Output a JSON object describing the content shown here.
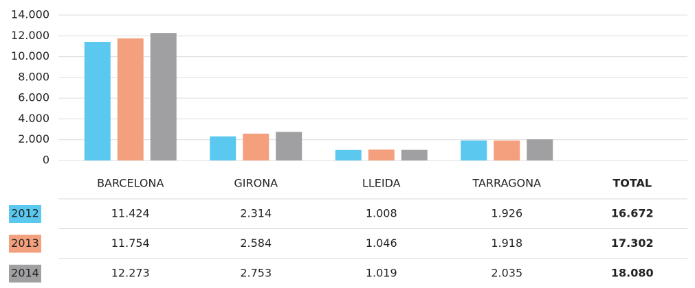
{
  "chart_data": {
    "type": "bar",
    "categories": [
      "BARCELONA",
      "GIRONA",
      "LLEIDA",
      "TARRAGONA"
    ],
    "total_header": "TOTAL",
    "series": [
      {
        "name": "2012",
        "color": "#5bc8f0",
        "values": [
          11424,
          2314,
          1008,
          1926
        ],
        "value_labels": [
          "11.424",
          "2.314",
          "1.008",
          "1.926"
        ],
        "total": {
          "value": 16672,
          "label": "16.672"
        }
      },
      {
        "name": "2013",
        "color": "#f4a07e",
        "values": [
          11754,
          2584,
          1046,
          1918
        ],
        "value_labels": [
          "11.754",
          "2.584",
          "1.046",
          "1.918"
        ],
        "total": {
          "value": 17302,
          "label": "17.302"
        }
      },
      {
        "name": "2014",
        "color": "#a0a0a2",
        "values": [
          12273,
          2753,
          1019,
          2035
        ],
        "value_labels": [
          "12.273",
          "2.753",
          "1.019",
          "2.035"
        ],
        "total": {
          "value": 18080,
          "label": "18.080"
        }
      }
    ],
    "ylim": [
      0,
      14000
    ],
    "yticks": [
      0,
      {
        "value": 2000,
        "label": "2.000"
      },
      {
        "value": 4000,
        "label": "4.000"
      },
      {
        "value": 6000,
        "label": "6.000"
      },
      {
        "value": 8000,
        "label": "8.000"
      },
      {
        "value": 10000,
        "label": "10.000"
      },
      {
        "value": 12000,
        "label": "12.000"
      },
      {
        "value": 14000,
        "label": "14.000"
      }
    ],
    "grid": true
  }
}
